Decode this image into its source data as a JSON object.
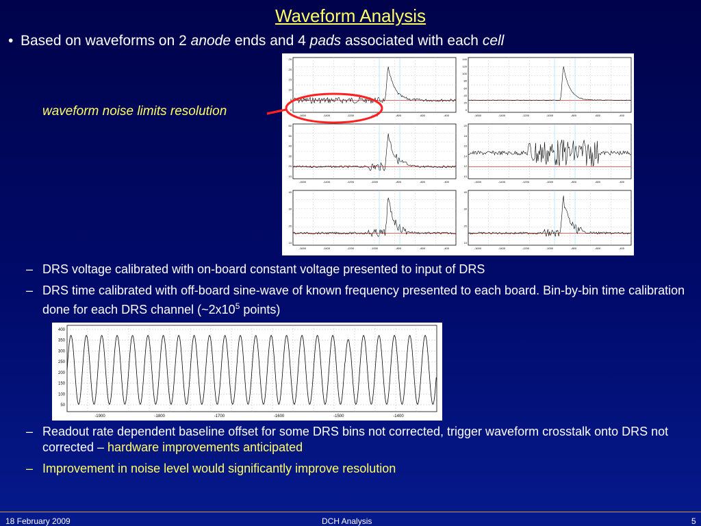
{
  "slide": {
    "title": "Waveform Analysis",
    "bullet": {
      "bullet_char": "•",
      "part1": "Based on waveforms on 2 ",
      "anode": "anode",
      "part2": " ends and 4 ",
      "pads": "pads",
      "part3": " associated with each ",
      "cell": "cell"
    },
    "annotation": "waveform noise limits resolution",
    "sub_bullets": [
      {
        "dash": "–",
        "text": "DRS voltage calibrated with on-board constant voltage presented to input of DRS"
      },
      {
        "dash": "–",
        "text_a": "DRS time calibrated with off-board sine-wave of known frequency presented to each board. Bin-by-bin time calibration done for each DRS channel (~2x10",
        "sup": "5",
        "text_b": " points)"
      },
      {
        "dash": "–",
        "text": "Readout rate dependent baseline offset for some DRS bins not corrected, trigger waveform crosstalk onto DRS not corrected – ",
        "highlight": "hardware improvements anticipated"
      },
      {
        "dash": "–",
        "highlight": "Improvement in noise level would significantly improve resolution"
      }
    ],
    "colors": {
      "accent": "#ffff66",
      "background": "#000a6a",
      "footer_line": "#c8a040"
    }
  },
  "footer": {
    "date": "18 February 2009",
    "center": "DCH Analysis",
    "page": "5"
  },
  "sine_plot": {
    "x_ticks": [
      "-1900",
      "-1800",
      "-1700",
      "-1600",
      "-1500",
      "-1400"
    ],
    "y_ticks": [
      "400",
      "350",
      "300",
      "250",
      "200",
      "150",
      "100",
      "50"
    ]
  },
  "waveform_panels": [
    {
      "y_ticks": [
        "25",
        "20",
        "15",
        "10",
        "5",
        "0"
      ]
    },
    {
      "y_ticks": [
        "140",
        "120",
        "100",
        "80",
        "60",
        "40",
        "20",
        "0"
      ]
    },
    {
      "y_ticks": [
        "60",
        "50",
        "40",
        "30",
        "20",
        "10"
      ]
    },
    {
      "y_ticks": [
        "20",
        "18",
        "16",
        "14",
        "12",
        "10"
      ]
    },
    {
      "y_ticks": [
        "40",
        "30",
        "20",
        "10"
      ]
    },
    {
      "y_ticks": [
        "40",
        "30",
        "20",
        "10"
      ]
    }
  ],
  "waveform_x_ticks": [
    "-1600",
    "-1400",
    "-1200",
    "-1000",
    "-800",
    "-600",
    "-400"
  ],
  "chart_data": [
    {
      "type": "line",
      "title": "",
      "x_ticks": [
        -1900,
        -1800,
        -1700,
        -1600,
        -1500,
        -1400
      ],
      "xlim": [
        -1940,
        -1340
      ],
      "ylim": [
        20,
        420
      ],
      "y_ticks": [
        50,
        100,
        150,
        200,
        250,
        300,
        350,
        400
      ],
      "series": [
        {
          "values_description_amplitude": [
            80,
            370
          ],
          "cycles": 24
        }
      ]
    }
  ]
}
